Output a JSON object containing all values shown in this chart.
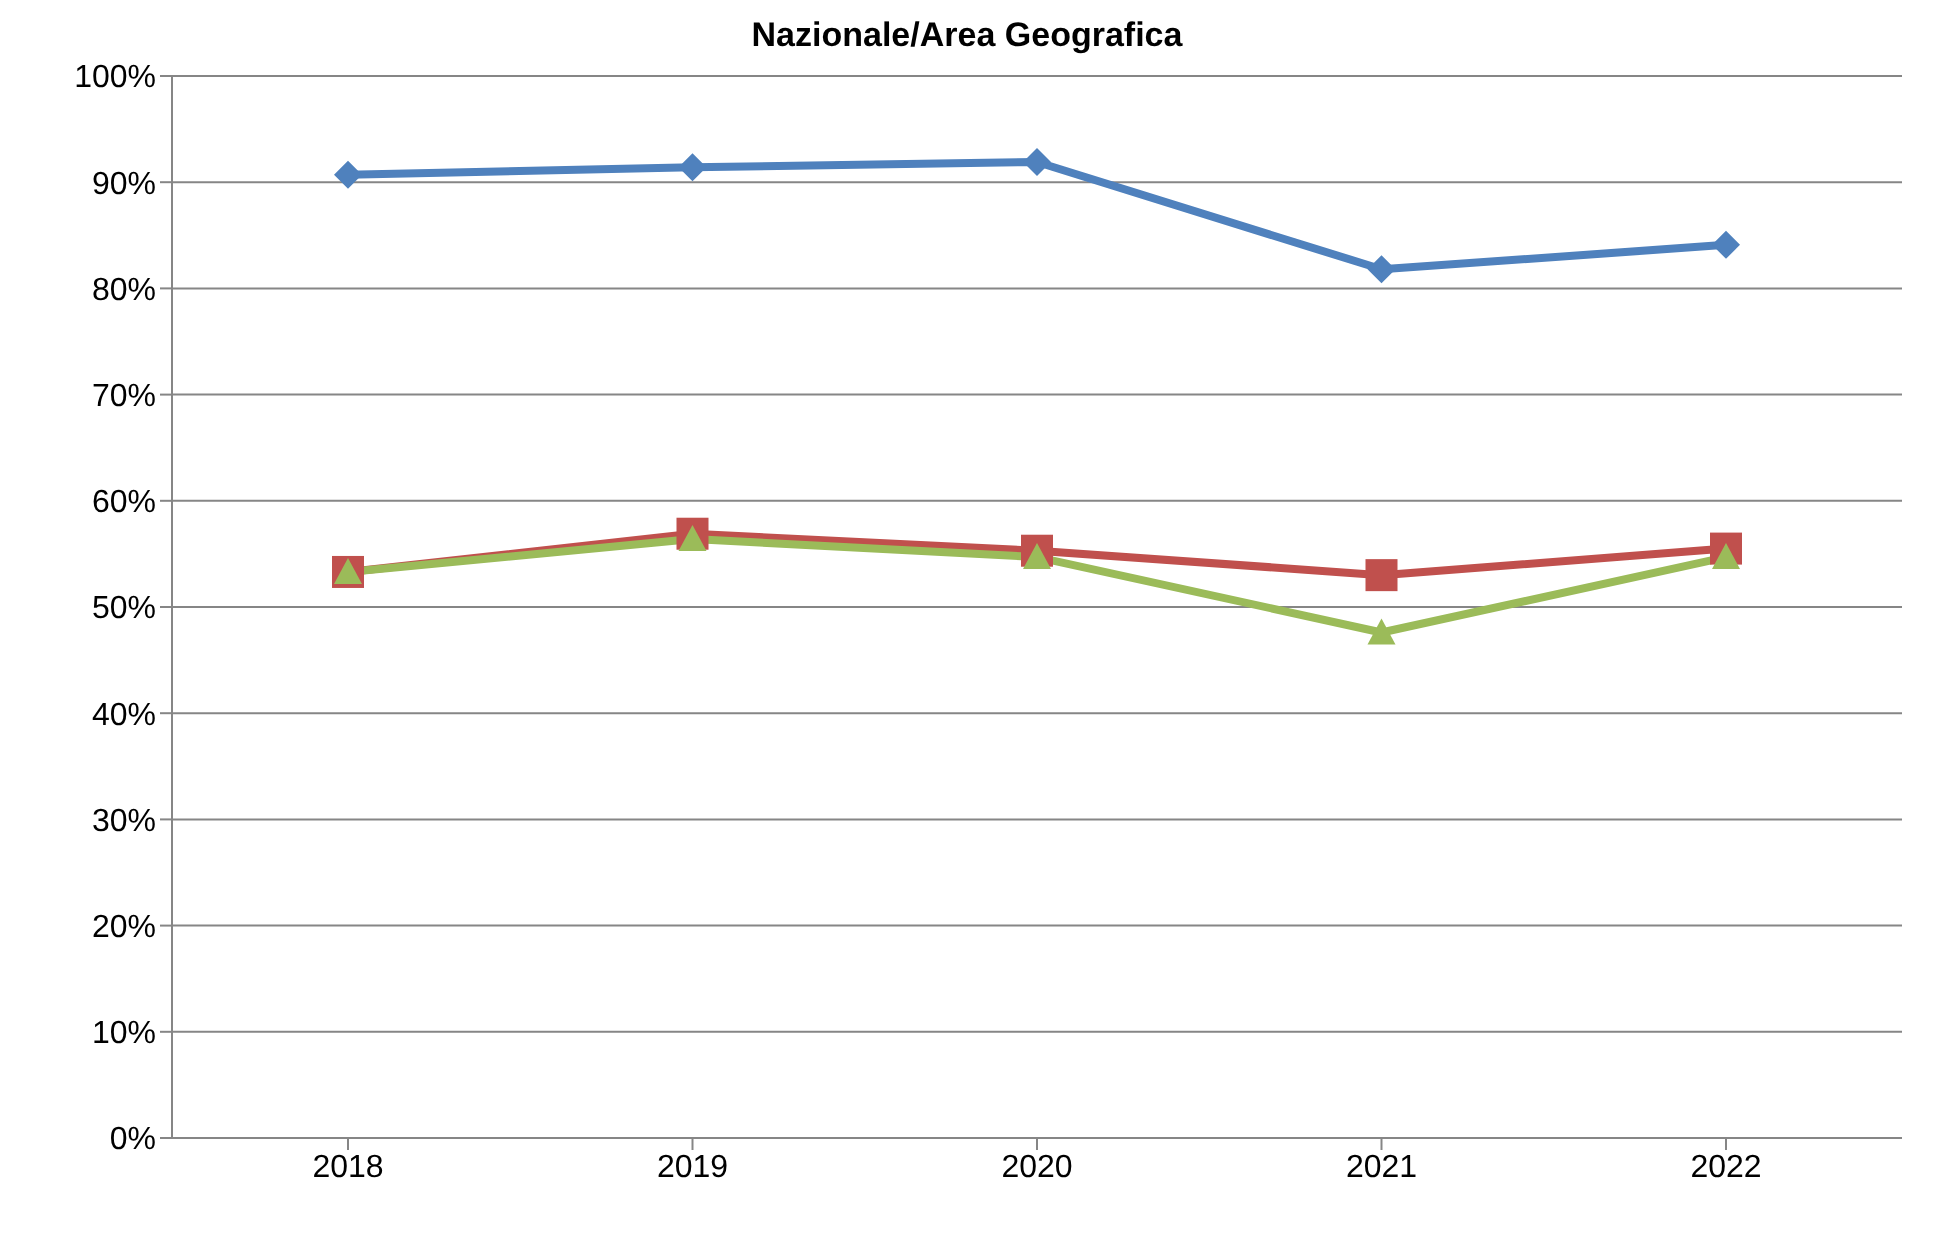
{
  "chart_data": {
    "type": "line",
    "title": "Nazionale/Area Geografica",
    "categories": [
      "2018",
      "2019",
      "2020",
      "2021",
      "2022"
    ],
    "series": [
      {
        "color": "#4f81bd",
        "marker": "diamond",
        "values": [
          90.7,
          91.4,
          91.9,
          81.8,
          84.1
        ]
      },
      {
        "color": "#c0504d",
        "marker": "square",
        "values": [
          53.3,
          56.9,
          55.3,
          53.0,
          55.5
        ]
      },
      {
        "color": "#9bbb59",
        "marker": "triangle",
        "values": [
          53.3,
          56.4,
          54.7,
          47.6,
          54.7
        ]
      }
    ],
    "ylim": [
      0,
      100
    ],
    "yticks": [
      {
        "value": 0,
        "label": "0%"
      },
      {
        "value": 10,
        "label": "10%"
      },
      {
        "value": 20,
        "label": "20%"
      },
      {
        "value": 30,
        "label": "30%"
      },
      {
        "value": 40,
        "label": "40%"
      },
      {
        "value": 50,
        "label": "50%"
      },
      {
        "value": 60,
        "label": "60%"
      },
      {
        "value": 70,
        "label": "70%"
      },
      {
        "value": 80,
        "label": "80%"
      },
      {
        "value": 90,
        "label": "90%"
      },
      {
        "value": 100,
        "label": "100%"
      }
    ],
    "grid": "y",
    "legend": false,
    "line_style": "solid"
  }
}
